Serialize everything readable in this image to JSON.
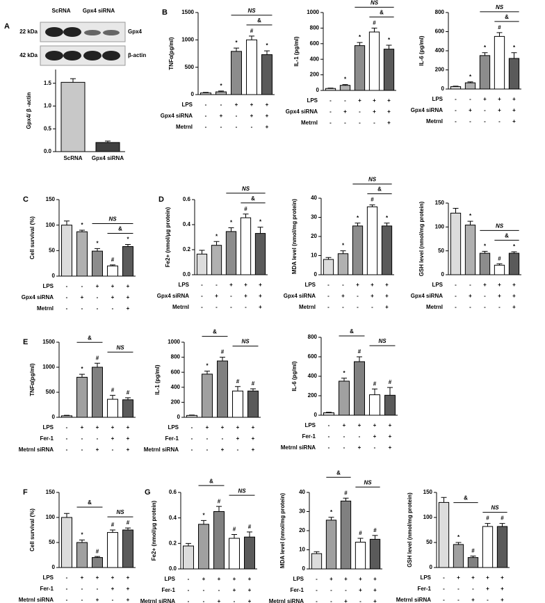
{
  "blot": {
    "panel": "A",
    "lanes": [
      "ScRNA",
      "Gpx4 siRNA"
    ],
    "rows": [
      {
        "size": "22 kDa",
        "protein": "Gpx4"
      },
      {
        "size": "42 kDa",
        "protein": "β-actin"
      }
    ]
  },
  "chart_data": [
    {
      "type": "bar",
      "ylabel": "Gpx4/ β -actin",
      "categories": [
        "ScRNA",
        "Gpx4 siRNA"
      ],
      "values": [
        1.52,
        0.2
      ],
      "errors": [
        0.08,
        0.03
      ],
      "colors": [
        "#c8c8c8",
        "#404040"
      ],
      "ylim": [
        0,
        1.8
      ],
      "yticks": [
        {
          "value": 0,
          "label": "0.0"
        },
        {
          "value": 0.5,
          "label": "0.5"
        },
        {
          "value": 1,
          "label": "1.0"
        },
        {
          "value": 1.5,
          "label": "1.5"
        }
      ]
    },
    {
      "type": "bar",
      "panel": "B",
      "ylabel": "TNFα(pg/ml)",
      "values": [
        30,
        50,
        790,
        1000,
        730
      ],
      "errors": [
        10,
        15,
        60,
        70,
        70
      ],
      "marks": [
        null,
        "*",
        "*",
        "#",
        "*"
      ],
      "brackets": [
        "NS",
        "&"
      ],
      "colors": [
        "#dcdcdc",
        "#b0b0b0",
        "#8c8c8c",
        "#ffffff",
        "#5a5a5a"
      ],
      "ylim": [
        0,
        1500
      ],
      "yticks": [
        0,
        500,
        1000,
        1500
      ],
      "treatments": [
        {
          "label": "LPS",
          "signs": [
            "-",
            "-",
            "+",
            "+",
            "+"
          ]
        },
        {
          "label": "Gpx4 siRNA",
          "signs": [
            "-",
            "+",
            "-",
            "+",
            "+"
          ]
        },
        {
          "label": "Metrnl",
          "signs": [
            "-",
            "-",
            "-",
            "-",
            "+"
          ]
        }
      ]
    },
    {
      "type": "bar",
      "ylabel": "IL-1 (pg/ml)",
      "values": [
        25,
        65,
        575,
        750,
        530
      ],
      "errors": [
        5,
        10,
        40,
        50,
        50
      ],
      "marks": [
        null,
        "*",
        "*",
        "#",
        "*"
      ],
      "brackets": [
        "NS",
        "&"
      ],
      "colors": [
        "#dcdcdc",
        "#b0b0b0",
        "#8c8c8c",
        "#ffffff",
        "#5a5a5a"
      ],
      "ylim": [
        0,
        1000
      ],
      "yticks": [
        0,
        200,
        400,
        600,
        800,
        1000
      ],
      "treatments": [
        {
          "label": "LPS",
          "signs": [
            "-",
            "-",
            "+",
            "+",
            "+"
          ]
        },
        {
          "label": "Gpx4 siRNA",
          "signs": [
            "-",
            "+",
            "-",
            "+",
            "+"
          ]
        },
        {
          "label": "Metrnl",
          "signs": [
            "-",
            "-",
            "-",
            "-",
            "+"
          ]
        }
      ]
    },
    {
      "type": "bar",
      "ylabel": "IL-6 (pg/ml)",
      "values": [
        25,
        65,
        350,
        550,
        320
      ],
      "errors": [
        5,
        10,
        30,
        40,
        60
      ],
      "marks": [
        null,
        "*",
        "*",
        "#",
        "*"
      ],
      "brackets": [
        "NS",
        "&"
      ],
      "colors": [
        "#dcdcdc",
        "#b0b0b0",
        "#8c8c8c",
        "#ffffff",
        "#5a5a5a"
      ],
      "ylim": [
        0,
        800
      ],
      "yticks": [
        0,
        200,
        400,
        600,
        800
      ],
      "treatments": [
        {
          "label": "LPS",
          "signs": [
            "-",
            "-",
            "+",
            "+",
            "+"
          ]
        },
        {
          "label": "Gpx4 siRNA",
          "signs": [
            "-",
            "+",
            "-",
            "+",
            "+"
          ]
        },
        {
          "label": "Metrnl",
          "signs": [
            "-",
            "-",
            "-",
            "-",
            "+"
          ]
        }
      ]
    },
    {
      "type": "bar",
      "panel": "C",
      "ylabel": "Cell survival (%)",
      "values": [
        100,
        87,
        49,
        20,
        58
      ],
      "errors": [
        8,
        3,
        5,
        2,
        4
      ],
      "marks": [
        null,
        "*",
        "*",
        "#",
        "*"
      ],
      "brackets": [
        "NS",
        "&"
      ],
      "colors": [
        "#dcdcdc",
        "#b0b0b0",
        "#8c8c8c",
        "#ffffff",
        "#5a5a5a"
      ],
      "ylim": [
        0,
        150
      ],
      "yticks": [
        0,
        50,
        100,
        150
      ],
      "treatments": [
        {
          "label": "LPS",
          "signs": [
            "-",
            "-",
            "+",
            "+",
            "+"
          ]
        },
        {
          "label": "Gpx4 siRNA",
          "signs": [
            "-",
            "+",
            "-",
            "+",
            "+"
          ]
        },
        {
          "label": "Metrnl",
          "signs": [
            "-",
            "-",
            "-",
            "-",
            "+"
          ]
        }
      ]
    },
    {
      "type": "bar",
      "panel": "D",
      "ylabel": "Fe2+ (nmol/μg protein)",
      "values": [
        0.165,
        0.235,
        0.345,
        0.455,
        0.33
      ],
      "errors": [
        0.03,
        0.03,
        0.03,
        0.03,
        0.05
      ],
      "marks": [
        null,
        "*",
        "*",
        "#",
        "*"
      ],
      "brackets": [
        "NS",
        "&"
      ],
      "colors": [
        "#dcdcdc",
        "#b0b0b0",
        "#8c8c8c",
        "#ffffff",
        "#5a5a5a"
      ],
      "ylim": [
        0,
        0.6
      ],
      "yticks": [
        {
          "value": 0,
          "label": "0.0"
        },
        {
          "value": 0.2,
          "label": "0.2"
        },
        {
          "value": 0.4,
          "label": "0.4"
        },
        {
          "value": 0.6,
          "label": "0.6"
        }
      ],
      "treatments": [
        {
          "label": "LPS",
          "signs": [
            "-",
            "-",
            "+",
            "+",
            "+"
          ]
        },
        {
          "label": "Gpx4 siRNA",
          "signs": [
            "-",
            "+",
            "-",
            "+",
            "+"
          ]
        },
        {
          "label": "Metrnl",
          "signs": [
            "-",
            "-",
            "-",
            "-",
            "+"
          ]
        }
      ]
    },
    {
      "type": "bar",
      "ylabel": "MDA level (nmol/mg protein)",
      "values": [
        8,
        11,
        25.5,
        35.5,
        25.5
      ],
      "errors": [
        1,
        1.5,
        1.5,
        1,
        1.5
      ],
      "marks": [
        null,
        "*",
        "*",
        "#",
        "*"
      ],
      "brackets": [
        "NS",
        "&"
      ],
      "colors": [
        "#dcdcdc",
        "#b0b0b0",
        "#8c8c8c",
        "#ffffff",
        "#5a5a5a"
      ],
      "ylim": [
        0,
        40
      ],
      "yticks": [
        0,
        10,
        20,
        30,
        40
      ],
      "treatments": [
        {
          "label": "LPS",
          "signs": [
            "-",
            "-",
            "+",
            "+",
            "+"
          ]
        },
        {
          "label": "Gpx4 siRNA",
          "signs": [
            "-",
            "+",
            "-",
            "+",
            "+"
          ]
        },
        {
          "label": "Metrnl",
          "signs": [
            "-",
            "-",
            "-",
            "-",
            "+"
          ]
        }
      ]
    },
    {
      "type": "bar",
      "ylabel": "GSH level (nmol/mg protein)",
      "values": [
        129,
        104,
        45,
        20,
        45
      ],
      "errors": [
        10,
        8,
        4,
        3,
        3
      ],
      "marks": [
        null,
        "*",
        "*",
        "#",
        "*"
      ],
      "brackets": [
        "NS",
        "&"
      ],
      "colors": [
        "#dcdcdc",
        "#b0b0b0",
        "#8c8c8c",
        "#ffffff",
        "#5a5a5a"
      ],
      "ylim": [
        0,
        150
      ],
      "yticks": [
        0,
        50,
        100,
        150
      ],
      "treatments": [
        {
          "label": "LPS",
          "signs": [
            "-",
            "-",
            "+",
            "+",
            "+"
          ]
        },
        {
          "label": "Gpx4 siRNA",
          "signs": [
            "-",
            "+",
            "-",
            "+",
            "+"
          ]
        },
        {
          "label": "Metrnl",
          "signs": [
            "-",
            "-",
            "-",
            "-",
            "+"
          ]
        }
      ]
    },
    {
      "type": "bar",
      "panel": "E",
      "ylabel": "TNFα(pg/ml)",
      "values": [
        30,
        800,
        1000,
        360,
        350
      ],
      "errors": [
        10,
        60,
        80,
        80,
        40
      ],
      "marks": [
        null,
        "*",
        "#",
        "#",
        "#"
      ],
      "brackets": [
        "&",
        "NS"
      ],
      "colors": [
        "#dcdcdc",
        "#a0a0a0",
        "#808080",
        "#ffffff",
        "#5a5a5a"
      ],
      "ylim": [
        0,
        1500
      ],
      "yticks": [
        0,
        500,
        1000,
        1500
      ],
      "treatments": [
        {
          "label": "LPS",
          "signs": [
            "-",
            "+",
            "+",
            "+",
            "+"
          ]
        },
        {
          "label": "Fer-1",
          "signs": [
            "-",
            "-",
            "-",
            "+",
            "+"
          ]
        },
        {
          "label": "Metrnl siRNA",
          "signs": [
            "-",
            "-",
            "+",
            "-",
            "+"
          ]
        }
      ]
    },
    {
      "type": "bar",
      "ylabel": "IL-1 (pg/ml)",
      "values": [
        25,
        575,
        750,
        350,
        350
      ],
      "errors": [
        5,
        40,
        50,
        60,
        30
      ],
      "marks": [
        null,
        "*",
        "#",
        "#",
        "#"
      ],
      "brackets": [
        "&",
        "NS"
      ],
      "colors": [
        "#dcdcdc",
        "#a0a0a0",
        "#808080",
        "#ffffff",
        "#5a5a5a"
      ],
      "ylim": [
        0,
        1000
      ],
      "yticks": [
        0,
        200,
        400,
        600,
        800,
        1000
      ],
      "treatments": [
        {
          "label": "LPS",
          "signs": [
            "-",
            "+",
            "+",
            "+",
            "+"
          ]
        },
        {
          "label": "Fer-1",
          "signs": [
            "-",
            "-",
            "-",
            "+",
            "+"
          ]
        },
        {
          "label": "Metrnl siRNA",
          "signs": [
            "-",
            "-",
            "+",
            "-",
            "+"
          ]
        }
      ]
    },
    {
      "type": "bar",
      "ylabel": "IL-6 (pg/ml)",
      "values": [
        25,
        350,
        550,
        210,
        205
      ],
      "errors": [
        5,
        30,
        50,
        60,
        80
      ],
      "marks": [
        null,
        "*",
        "#",
        "#",
        "#"
      ],
      "brackets": [
        "&",
        "NS"
      ],
      "colors": [
        "#dcdcdc",
        "#a0a0a0",
        "#808080",
        "#ffffff",
        "#5a5a5a"
      ],
      "ylim": [
        0,
        800
      ],
      "yticks": [
        0,
        200,
        400,
        600,
        800
      ],
      "treatments": [
        {
          "label": "LPS",
          "signs": [
            "-",
            "+",
            "+",
            "+",
            "+"
          ]
        },
        {
          "label": "Fer-1",
          "signs": [
            "-",
            "-",
            "-",
            "+",
            "+"
          ]
        },
        {
          "label": "Metrnl siRNA",
          "signs": [
            "-",
            "-",
            "+",
            "-",
            "+"
          ]
        }
      ]
    },
    {
      "type": "bar",
      "panel": "F",
      "ylabel": "Cell survival (%)",
      "values": [
        100,
        50,
        20,
        70,
        75
      ],
      "errors": [
        8,
        5,
        2,
        5,
        4
      ],
      "marks": [
        null,
        "*",
        "#",
        "#",
        "#"
      ],
      "brackets": [
        "&",
        "NS"
      ],
      "colors": [
        "#dcdcdc",
        "#a0a0a0",
        "#808080",
        "#ffffff",
        "#5a5a5a"
      ],
      "ylim": [
        0,
        150
      ],
      "yticks": [
        0,
        50,
        100,
        150
      ],
      "treatments": [
        {
          "label": "LPS",
          "signs": [
            "-",
            "+",
            "+",
            "+",
            "+"
          ]
        },
        {
          "label": "Fer-1",
          "signs": [
            "-",
            "-",
            "-",
            "+",
            "+"
          ]
        },
        {
          "label": "Metrnl siRNA",
          "signs": [
            "-",
            "-",
            "+",
            "-",
            "+"
          ]
        }
      ]
    },
    {
      "type": "bar",
      "panel": "G",
      "ylabel": "Fe2+ (nmol/μg protein)",
      "values": [
        0.18,
        0.35,
        0.45,
        0.24,
        0.25
      ],
      "errors": [
        0.02,
        0.03,
        0.04,
        0.03,
        0.04
      ],
      "marks": [
        null,
        "*",
        "#",
        "#",
        "#"
      ],
      "brackets": [
        "&",
        "NS"
      ],
      "colors": [
        "#dcdcdc",
        "#a0a0a0",
        "#808080",
        "#ffffff",
        "#5a5a5a"
      ],
      "ylim": [
        0,
        0.6
      ],
      "yticks": [
        {
          "value": 0,
          "label": "0.0"
        },
        {
          "value": 0.2,
          "label": "0.2"
        },
        {
          "value": 0.4,
          "label": "0.4"
        },
        {
          "value": 0.6,
          "label": "0.6"
        }
      ],
      "treatments": [
        {
          "label": "LPS",
          "signs": [
            "-",
            "+",
            "+",
            "+",
            "+"
          ]
        },
        {
          "label": "Fer-1",
          "signs": [
            "-",
            "-",
            "-",
            "+",
            "+"
          ]
        },
        {
          "label": "Metrnl siRNA",
          "signs": [
            "-",
            "-",
            "+",
            "-",
            "+"
          ]
        }
      ]
    },
    {
      "type": "bar",
      "ylabel": "MDA level (nmol/mg protein)",
      "values": [
        8,
        25.5,
        35.5,
        14,
        15.5
      ],
      "errors": [
        1,
        1.5,
        1.5,
        2,
        2
      ],
      "marks": [
        null,
        "*",
        "#",
        "#",
        "#"
      ],
      "brackets": [
        "&",
        "NS"
      ],
      "colors": [
        "#dcdcdc",
        "#a0a0a0",
        "#808080",
        "#ffffff",
        "#5a5a5a"
      ],
      "ylim": [
        0,
        40
      ],
      "yticks": [
        0,
        10,
        20,
        30,
        40
      ],
      "treatments": [
        {
          "label": "LPS",
          "signs": [
            "-",
            "+",
            "+",
            "+",
            "+"
          ]
        },
        {
          "label": "Fer-1",
          "signs": [
            "-",
            "-",
            "-",
            "+",
            "+"
          ]
        },
        {
          "label": "Metrnl siRNA",
          "signs": [
            "-",
            "-",
            "+",
            "-",
            "+"
          ]
        }
      ]
    },
    {
      "type": "bar",
      "ylabel": "GSH level (nmol/mg protein)",
      "values": [
        130,
        46,
        20,
        82,
        82
      ],
      "errors": [
        10,
        4,
        3,
        6,
        6
      ],
      "marks": [
        null,
        "*",
        "#",
        "#",
        "#"
      ],
      "brackets": [
        "&",
        "NS"
      ],
      "colors": [
        "#dcdcdc",
        "#a0a0a0",
        "#808080",
        "#ffffff",
        "#5a5a5a"
      ],
      "ylim": [
        0,
        150
      ],
      "yticks": [
        0,
        50,
        100,
        150
      ],
      "treatments": [
        {
          "label": "LPS",
          "signs": [
            "-",
            "+",
            "+",
            "+",
            "+"
          ]
        },
        {
          "label": "Fer-1",
          "signs": [
            "-",
            "-",
            "-",
            "+",
            "+"
          ]
        },
        {
          "label": "Metrnl siRNA",
          "signs": [
            "-",
            "-",
            "+",
            "-",
            "+"
          ]
        }
      ]
    }
  ]
}
